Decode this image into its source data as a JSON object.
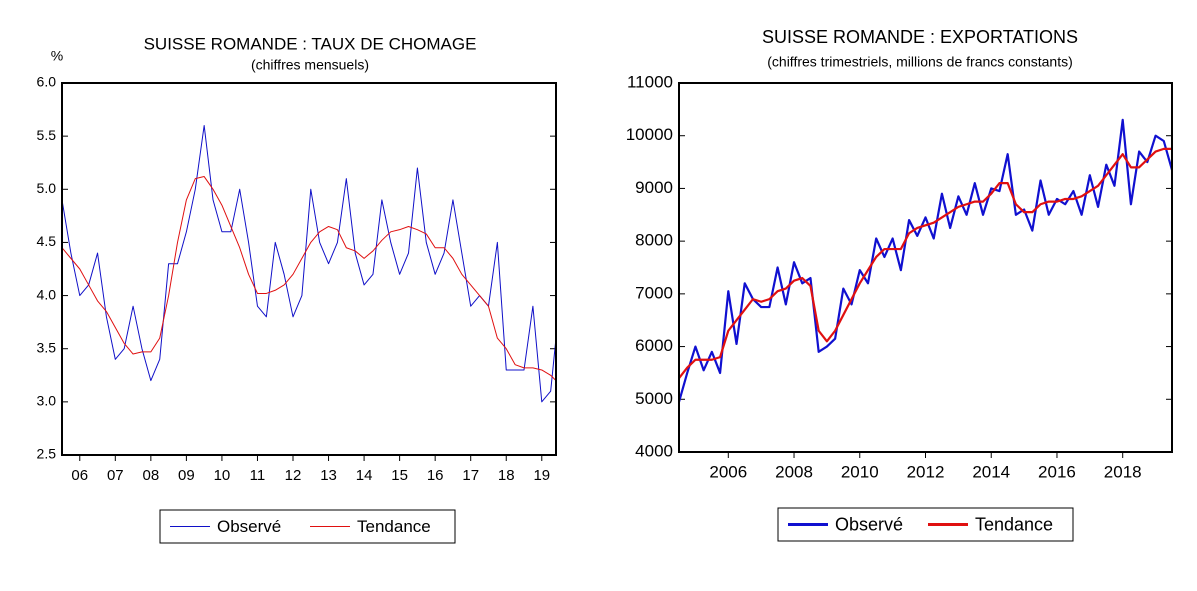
{
  "chart_data": [
    {
      "type": "line",
      "title": "SUISSE ROMANDE : TAUX DE CHOMAGE",
      "subtitle": "(chiffres mensuels)",
      "y_axis_label": "%",
      "x": [
        2006,
        2006.25,
        2006.5,
        2006.75,
        2007,
        2007.25,
        2007.5,
        2007.75,
        2008,
        2008.25,
        2008.5,
        2008.75,
        2009,
        2009.25,
        2009.5,
        2009.75,
        2010,
        2010.25,
        2010.5,
        2010.75,
        2011,
        2011.25,
        2011.5,
        2011.75,
        2012,
        2012.25,
        2012.5,
        2012.75,
        2013,
        2013.25,
        2013.5,
        2013.75,
        2014,
        2014.25,
        2014.5,
        2014.75,
        2015,
        2015.25,
        2015.5,
        2015.75,
        2016,
        2016.25,
        2016.5,
        2016.75,
        2017,
        2017.25,
        2017.5,
        2017.75,
        2018,
        2018.25,
        2018.5,
        2018.75,
        2019,
        2019.25,
        2019.5,
        2019.75,
        2019.9
      ],
      "series": [
        {
          "name": "Observé",
          "color": "#1010c8",
          "values": [
            4.9,
            4.4,
            4.0,
            4.1,
            4.4,
            3.8,
            3.4,
            3.5,
            3.9,
            3.5,
            3.2,
            3.4,
            4.3,
            4.3,
            4.6,
            5.0,
            5.6,
            4.9,
            4.6,
            4.6,
            5.0,
            4.5,
            3.9,
            3.8,
            4.5,
            4.2,
            3.8,
            4.0,
            5.0,
            4.5,
            4.3,
            4.5,
            5.1,
            4.4,
            4.1,
            4.2,
            4.9,
            4.5,
            4.2,
            4.4,
            5.2,
            4.5,
            4.2,
            4.4,
            4.9,
            4.4,
            3.9,
            4.0,
            3.9,
            4.5,
            3.3,
            3.3,
            3.3,
            3.9,
            3.0,
            3.1,
            3.6
          ]
        },
        {
          "name": "Tendance",
          "color": "#e01010",
          "values": [
            4.45,
            4.35,
            4.25,
            4.1,
            3.95,
            3.85,
            3.7,
            3.55,
            3.45,
            3.47,
            3.47,
            3.6,
            4.0,
            4.5,
            4.9,
            5.1,
            5.12,
            5.0,
            4.85,
            4.65,
            4.45,
            4.2,
            4.02,
            4.02,
            4.05,
            4.1,
            4.2,
            4.35,
            4.5,
            4.6,
            4.65,
            4.62,
            4.45,
            4.42,
            4.35,
            4.42,
            4.52,
            4.6,
            4.62,
            4.65,
            4.62,
            4.58,
            4.45,
            4.45,
            4.35,
            4.2,
            4.1,
            4.0,
            3.9,
            3.6,
            3.5,
            3.35,
            3.32,
            3.32,
            3.3,
            3.25,
            3.2
          ]
        }
      ],
      "xlim": [
        2006,
        2019.9
      ],
      "xticks": [
        {
          "value": 2006.5,
          "label": "06"
        },
        {
          "value": 2007.5,
          "label": "07"
        },
        {
          "value": 2008.5,
          "label": "08"
        },
        {
          "value": 2009.5,
          "label": "09"
        },
        {
          "value": 2010.5,
          "label": "10"
        },
        {
          "value": 2011.5,
          "label": "11"
        },
        {
          "value": 2012.5,
          "label": "12"
        },
        {
          "value": 2013.5,
          "label": "13"
        },
        {
          "value": 2014.5,
          "label": "14"
        },
        {
          "value": 2015.5,
          "label": "15"
        },
        {
          "value": 2016.5,
          "label": "16"
        },
        {
          "value": 2017.5,
          "label": "17"
        },
        {
          "value": 2018.5,
          "label": "18"
        },
        {
          "value": 2019.5,
          "label": "19"
        }
      ],
      "ylim": [
        2.5,
        6.0
      ],
      "yticks": [
        {
          "value": 2.5,
          "label": "2.5"
        },
        {
          "value": 3,
          "label": "3.0"
        },
        {
          "value": 3.5,
          "label": "3.5"
        },
        {
          "value": 4,
          "label": "4.0"
        },
        {
          "value": 4.5,
          "label": "4.5"
        },
        {
          "value": 5,
          "label": "5.0"
        },
        {
          "value": 5.5,
          "label": "5.5"
        },
        {
          "value": 6,
          "label": "6.0"
        }
      ],
      "legend": "bottom"
    },
    {
      "type": "line",
      "title": "SUISSE ROMANDE : EXPORTATIONS",
      "subtitle": "(chiffres trimestriels, millions de francs constants)",
      "x": [
        2004.5,
        2004.75,
        2005,
        2005.25,
        2005.5,
        2005.75,
        2006,
        2006.25,
        2006.5,
        2006.75,
        2007,
        2007.25,
        2007.5,
        2007.75,
        2008,
        2008.25,
        2008.5,
        2008.75,
        2009,
        2009.25,
        2009.5,
        2009.75,
        2010,
        2010.25,
        2010.5,
        2010.75,
        2011,
        2011.25,
        2011.5,
        2011.75,
        2012,
        2012.25,
        2012.5,
        2012.75,
        2013,
        2013.25,
        2013.5,
        2013.75,
        2014,
        2014.25,
        2014.5,
        2014.75,
        2015,
        2015.25,
        2015.5,
        2015.75,
        2016,
        2016.25,
        2016.5,
        2016.75,
        2017,
        2017.25,
        2017.5,
        2017.75,
        2018,
        2018.25,
        2018.5,
        2018.75,
        2019,
        2019.25,
        2019.5
      ],
      "series": [
        {
          "name": "Observé",
          "color": "#1010d0",
          "values": [
            4950,
            5500,
            6000,
            5550,
            5900,
            5500,
            7050,
            6050,
            7200,
            6900,
            6750,
            6750,
            7500,
            6800,
            7600,
            7200,
            7300,
            5900,
            6000,
            6150,
            7100,
            6800,
            7450,
            7200,
            8050,
            7700,
            8050,
            7450,
            8400,
            8100,
            8450,
            8050,
            8900,
            8250,
            8850,
            8500,
            9100,
            8500,
            9000,
            8950,
            9650,
            8500,
            8600,
            8200,
            9150,
            8500,
            8800,
            8700,
            8950,
            8500,
            9250,
            8650,
            9450,
            9050,
            10300,
            8700,
            9700,
            9500,
            10000,
            9900,
            9350
          ]
        },
        {
          "name": "Tendance",
          "color": "#e01010",
          "values": [
            5400,
            5600,
            5750,
            5750,
            5750,
            5800,
            6300,
            6500,
            6700,
            6900,
            6850,
            6900,
            7050,
            7100,
            7250,
            7300,
            7150,
            6300,
            6100,
            6300,
            6600,
            6900,
            7200,
            7450,
            7700,
            7850,
            7850,
            7850,
            8150,
            8250,
            8300,
            8350,
            8450,
            8550,
            8650,
            8700,
            8750,
            8750,
            8900,
            9100,
            9100,
            8700,
            8550,
            8550,
            8700,
            8750,
            8750,
            8800,
            8800,
            8850,
            8950,
            9050,
            9250,
            9450,
            9650,
            9400,
            9400,
            9550,
            9700,
            9750,
            9750
          ]
        }
      ],
      "xlim": [
        2004.5,
        2019.5
      ],
      "xticks": [
        2006,
        2008,
        2010,
        2012,
        2014,
        2016,
        2018
      ],
      "ylim": [
        4000,
        11000
      ],
      "yticks": [
        4000,
        5000,
        6000,
        7000,
        8000,
        9000,
        10000,
        11000
      ],
      "legend": "bottom"
    }
  ]
}
